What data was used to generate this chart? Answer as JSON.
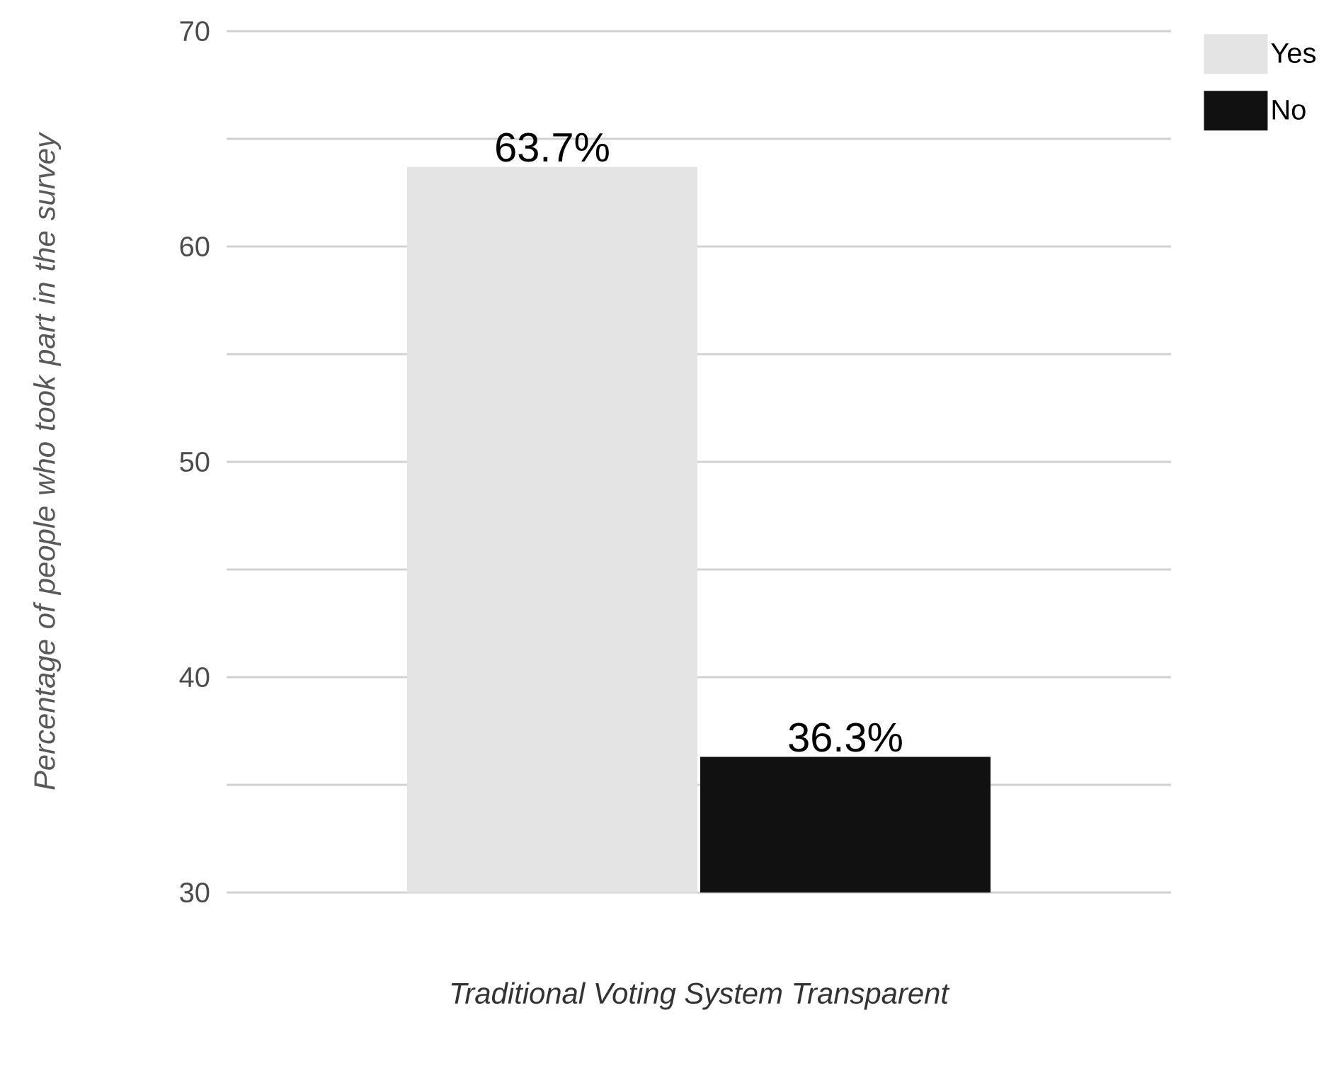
{
  "chart_data": {
    "type": "bar",
    "categories": [
      null
    ],
    "series": [
      {
        "name": "Yes",
        "color": "#e4e4e4",
        "values": [
          63.7
        ],
        "value_labels": [
          "63.7%"
        ]
      },
      {
        "name": "No",
        "color": "#111111",
        "values": [
          36.3
        ],
        "value_labels": [
          "36.3%"
        ]
      }
    ],
    "xlabel": "Traditional Voting System Transparent",
    "ylabel": "Percentage of people who took part in the survey",
    "ylim": [
      30,
      70
    ],
    "yticks": [
      30,
      {
        "value": 35,
        "label": null
      },
      40,
      {
        "value": 45,
        "label": null
      },
      50,
      {
        "value": 55,
        "label": null
      },
      60,
      {
        "value": 65,
        "label": null
      },
      70
    ],
    "grid": "y",
    "legend": "top right"
  }
}
